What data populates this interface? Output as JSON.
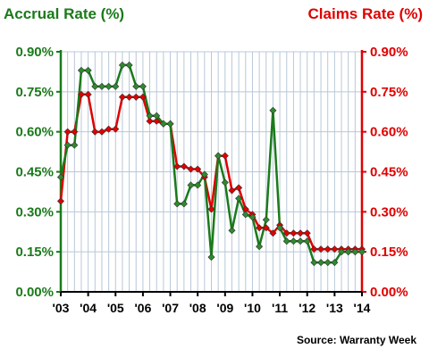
{
  "chart_data": {
    "type": "line",
    "left_axis_title": "Accrual Rate (%)",
    "right_axis_title": "Claims Rate (%)",
    "source": "Source: Warranty Week",
    "x_tick_labels": [
      "'03",
      "'04",
      "'05",
      "'06",
      "'07",
      "'08",
      "'09",
      "'10",
      "'11",
      "'12",
      "'13",
      "'14"
    ],
    "y_tick_labels": [
      "0.00%",
      "0.15%",
      "0.30%",
      "0.45%",
      "0.60%",
      "0.75%",
      "0.90%"
    ],
    "ylim": [
      0,
      0.9
    ],
    "xlim": [
      2003,
      2014
    ],
    "grid": true,
    "colors": {
      "accrual": "#1a7a1a",
      "claims": "#e00000",
      "grid": "#b8c8d8"
    },
    "series": [
      {
        "key": "accrual",
        "color": "#1a7a1a",
        "marker": "#2e8b2e",
        "points": [
          [
            2003.0,
            0.43
          ],
          [
            2003.25,
            0.55
          ],
          [
            2003.5,
            0.55
          ],
          [
            2003.75,
            0.83
          ],
          [
            2004.0,
            0.83
          ],
          [
            2004.25,
            0.77
          ],
          [
            2004.5,
            0.77
          ],
          [
            2004.75,
            0.77
          ],
          [
            2005.0,
            0.77
          ],
          [
            2005.25,
            0.85
          ],
          [
            2005.5,
            0.85
          ],
          [
            2005.75,
            0.77
          ],
          [
            2006.0,
            0.77
          ],
          [
            2006.25,
            0.66
          ],
          [
            2006.5,
            0.66
          ],
          [
            2006.75,
            0.63
          ],
          [
            2007.0,
            0.63
          ],
          [
            2007.25,
            0.33
          ],
          [
            2007.5,
            0.33
          ],
          [
            2007.75,
            0.4
          ],
          [
            2008.0,
            0.4
          ],
          [
            2008.25,
            0.44
          ],
          [
            2008.5,
            0.13
          ],
          [
            2008.75,
            0.51
          ],
          [
            2009.0,
            0.41
          ],
          [
            2009.25,
            0.23
          ],
          [
            2009.5,
            0.35
          ],
          [
            2009.75,
            0.29
          ],
          [
            2010.0,
            0.28
          ],
          [
            2010.25,
            0.17
          ],
          [
            2010.5,
            0.27
          ],
          [
            2010.75,
            0.68
          ],
          [
            2011.0,
            0.24
          ],
          [
            2011.25,
            0.19
          ],
          [
            2011.5,
            0.19
          ],
          [
            2011.75,
            0.19
          ],
          [
            2012.0,
            0.19
          ],
          [
            2012.25,
            0.11
          ],
          [
            2012.5,
            0.11
          ],
          [
            2012.75,
            0.11
          ],
          [
            2013.0,
            0.11
          ],
          [
            2013.25,
            0.15
          ],
          [
            2013.5,
            0.15
          ],
          [
            2013.75,
            0.15
          ],
          [
            2014.0,
            0.15
          ]
        ]
      },
      {
        "key": "claims",
        "color": "#e00000",
        "marker": "#e00000",
        "points": [
          [
            2003.0,
            0.34
          ],
          [
            2003.25,
            0.6
          ],
          [
            2003.5,
            0.6
          ],
          [
            2003.75,
            0.74
          ],
          [
            2004.0,
            0.74
          ],
          [
            2004.25,
            0.6
          ],
          [
            2004.5,
            0.6
          ],
          [
            2004.75,
            0.61
          ],
          [
            2005.0,
            0.61
          ],
          [
            2005.25,
            0.73
          ],
          [
            2005.5,
            0.73
          ],
          [
            2005.75,
            0.73
          ],
          [
            2006.0,
            0.73
          ],
          [
            2006.25,
            0.64
          ],
          [
            2006.5,
            0.64
          ],
          [
            2006.75,
            0.63
          ],
          [
            2007.0,
            0.63
          ],
          [
            2007.25,
            0.47
          ],
          [
            2007.5,
            0.47
          ],
          [
            2007.75,
            0.46
          ],
          [
            2008.0,
            0.46
          ],
          [
            2008.25,
            0.43
          ],
          [
            2008.5,
            0.31
          ],
          [
            2008.75,
            0.51
          ],
          [
            2009.0,
            0.51
          ],
          [
            2009.25,
            0.38
          ],
          [
            2009.5,
            0.39
          ],
          [
            2009.75,
            0.31
          ],
          [
            2010.0,
            0.29
          ],
          [
            2010.25,
            0.24
          ],
          [
            2010.5,
            0.24
          ],
          [
            2010.75,
            0.22
          ],
          [
            2011.0,
            0.25
          ],
          [
            2011.25,
            0.22
          ],
          [
            2011.5,
            0.22
          ],
          [
            2011.75,
            0.22
          ],
          [
            2012.0,
            0.22
          ],
          [
            2012.25,
            0.16
          ],
          [
            2012.5,
            0.16
          ],
          [
            2012.75,
            0.16
          ],
          [
            2013.0,
            0.16
          ],
          [
            2013.25,
            0.16
          ],
          [
            2013.5,
            0.16
          ],
          [
            2013.75,
            0.16
          ],
          [
            2014.0,
            0.16
          ]
        ]
      }
    ]
  }
}
